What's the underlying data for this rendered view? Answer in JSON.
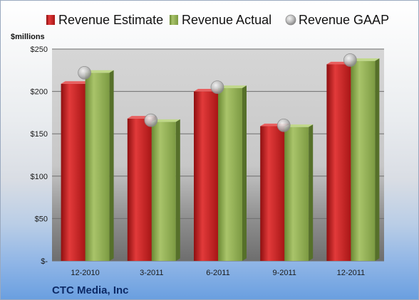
{
  "company": "CTC Media, Inc",
  "colors": {
    "estimate": "#cc1f1f",
    "actual": "#8fae4f",
    "gaap": "#b8b8b8"
  },
  "chart_data": {
    "type": "bar",
    "title": "",
    "unit_label": "$millions",
    "categories": [
      "12-2010",
      "3-2011",
      "6-2011",
      "9-2011",
      "12-2011"
    ],
    "series": [
      {
        "name": "Revenue Estimate",
        "kind": "bar",
        "values": [
          209,
          168,
          200,
          159,
          232
        ]
      },
      {
        "name": "Revenue Actual",
        "kind": "bar",
        "values": [
          222,
          164,
          204,
          158,
          236
        ]
      },
      {
        "name": "Revenue GAAP",
        "kind": "marker",
        "values": [
          222,
          166,
          205,
          160,
          237
        ]
      }
    ],
    "y_ticks": [
      0,
      50,
      100,
      150,
      200,
      250
    ],
    "y_tick_labels": [
      "$-",
      "$50",
      "$100",
      "$150",
      "$200",
      "$250"
    ],
    "ylim": [
      0,
      250
    ],
    "grid": true,
    "legend_position": "top"
  }
}
